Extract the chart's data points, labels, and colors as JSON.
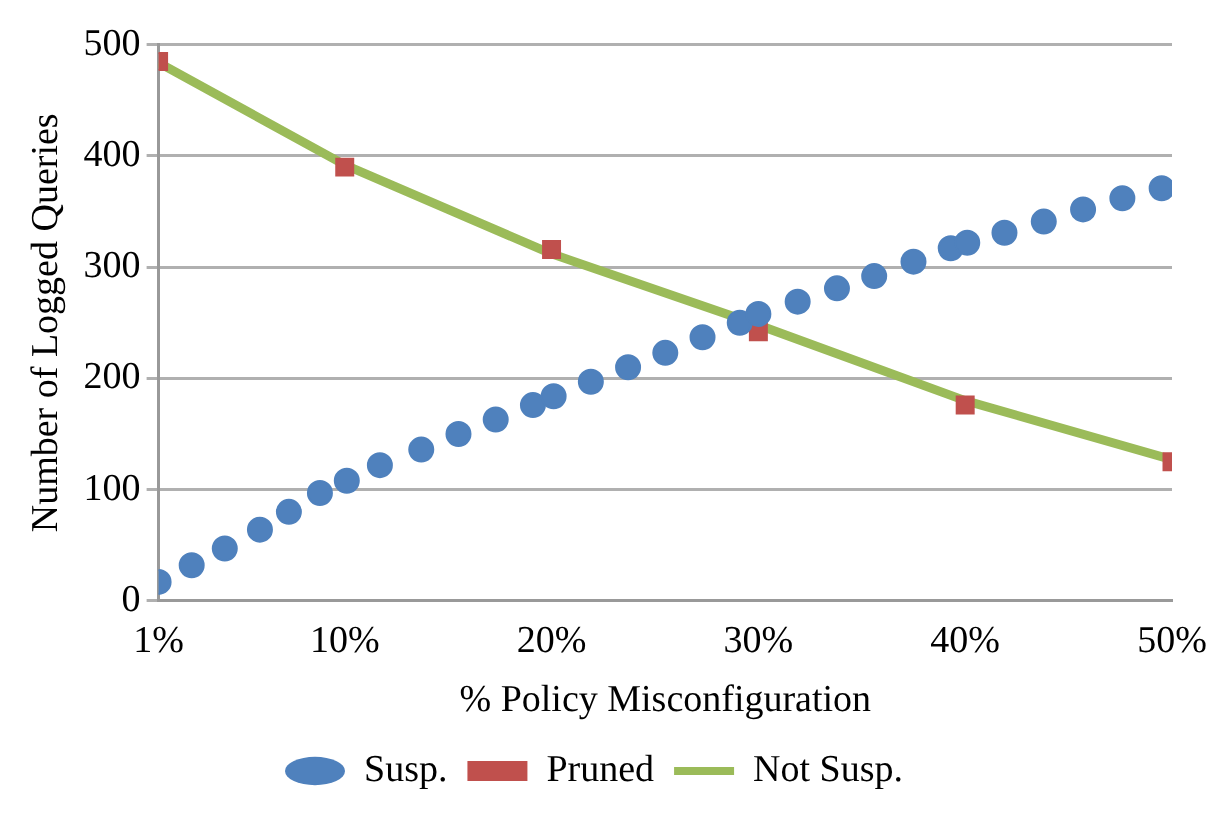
{
  "chart_data": {
    "type": "scatter",
    "xlabel": "% Policy Misconfiguration",
    "ylabel": "Number of Logged Queries",
    "xlim": [
      1,
      50
    ],
    "xticks": [
      {
        "value": 1,
        "label": "1%"
      },
      {
        "value": 10,
        "label": "10%"
      },
      {
        "value": 20,
        "label": "20%"
      },
      {
        "value": 30,
        "label": "30%"
      },
      {
        "value": 40,
        "label": "40%"
      },
      {
        "value": 50,
        "label": "50%"
      }
    ],
    "ylim": [
      0,
      500
    ],
    "yticks": [
      0,
      100,
      200,
      300,
      400,
      500
    ],
    "grid": "y",
    "legend": "bottom",
    "series": [
      {
        "name": "Susp.",
        "marker": "circle",
        "color": "#4f81bd",
        "x": [
          1,
          2.6,
          4.2,
          5.9,
          7.3,
          8.8,
          10.1,
          11.7,
          13.7,
          15.5,
          17.3,
          19.1,
          20.1,
          21.9,
          23.7,
          25.5,
          27.3,
          29.1,
          30.0,
          31.9,
          33.8,
          35.6,
          37.5,
          39.3,
          40.1,
          41.9,
          43.8,
          45.7,
          47.6,
          49.5
        ],
        "values": [
          17,
          32,
          47,
          64,
          80,
          97,
          108,
          122,
          136,
          150,
          163,
          176,
          184,
          197,
          210,
          223,
          237,
          250,
          258,
          269,
          281,
          292,
          305,
          317,
          322,
          331,
          341,
          352,
          362,
          371
        ]
      },
      {
        "name": "Pruned",
        "type": "scatter",
        "marker": "square",
        "color": "#c0504d",
        "x": [
          1,
          10,
          20,
          30,
          40,
          50
        ],
        "values": [
          485,
          390,
          316,
          242,
          176,
          125
        ]
      },
      {
        "name": "Not Susp.",
        "type": "line",
        "marker": "none",
        "color": "#9bbb59",
        "x": [
          1,
          10,
          20,
          30,
          40,
          50
        ],
        "values": [
          484,
          392,
          312,
          248,
          180,
          127
        ]
      }
    ]
  }
}
